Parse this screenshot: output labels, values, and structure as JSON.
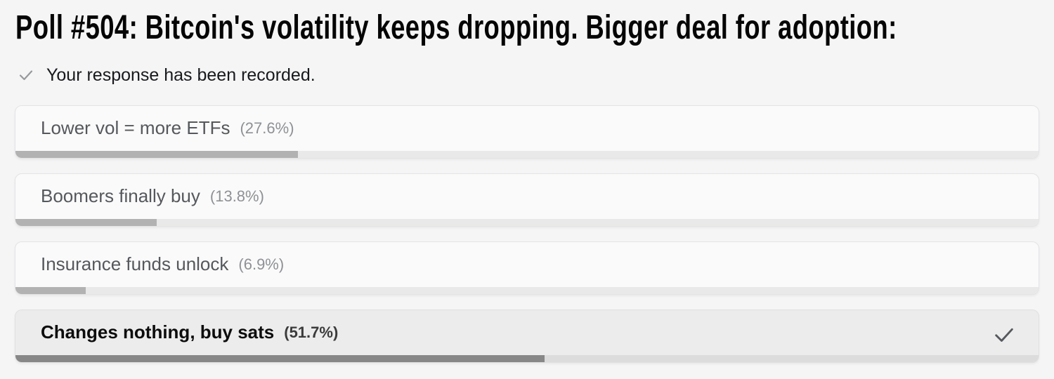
{
  "poll": {
    "title": "Poll #504: Bitcoin's volatility keeps dropping. Bigger deal for adoption:",
    "status": {
      "text": "Your response has been recorded."
    },
    "options": [
      {
        "label": "Lower vol = more ETFs",
        "percent_label": "(27.6%)",
        "percent": 27.6,
        "selected": false
      },
      {
        "label": "Boomers finally buy",
        "percent_label": "(13.8%)",
        "percent": 13.8,
        "selected": false
      },
      {
        "label": "Insurance funds unlock",
        "percent_label": "(6.9%)",
        "percent": 6.9,
        "selected": false
      },
      {
        "label": "Changes nothing, buy sats",
        "percent_label": "(51.7%)",
        "percent": 51.7,
        "selected": true
      }
    ],
    "colors": {
      "page_bg": "#f5f5f6",
      "row_bg": "#fafafa",
      "row_border": "#e4e4e4",
      "row_selected_bg": "#ececec",
      "bar_fill": "#b2b2b2",
      "bar_fill_selected": "#878787",
      "bar_track": "#e9e9e9",
      "bar_track_selected": "#dcdcdc",
      "label_color": "#55585c",
      "percent_color": "#8e9195",
      "selected_text_color": "#0d0d0d",
      "status_check_color": "#97999c",
      "selected_check_color": "#55585c"
    }
  },
  "chart_data": {
    "type": "bar",
    "title": "Poll #504: Bitcoin's volatility keeps dropping. Bigger deal for adoption:",
    "categories": [
      "Lower vol = more ETFs",
      "Boomers finally buy",
      "Insurance funds unlock",
      "Changes nothing, buy sats"
    ],
    "values": [
      27.6,
      13.8,
      6.9,
      51.7
    ],
    "unit": "%",
    "selected_category": "Changes nothing, buy sats"
  }
}
